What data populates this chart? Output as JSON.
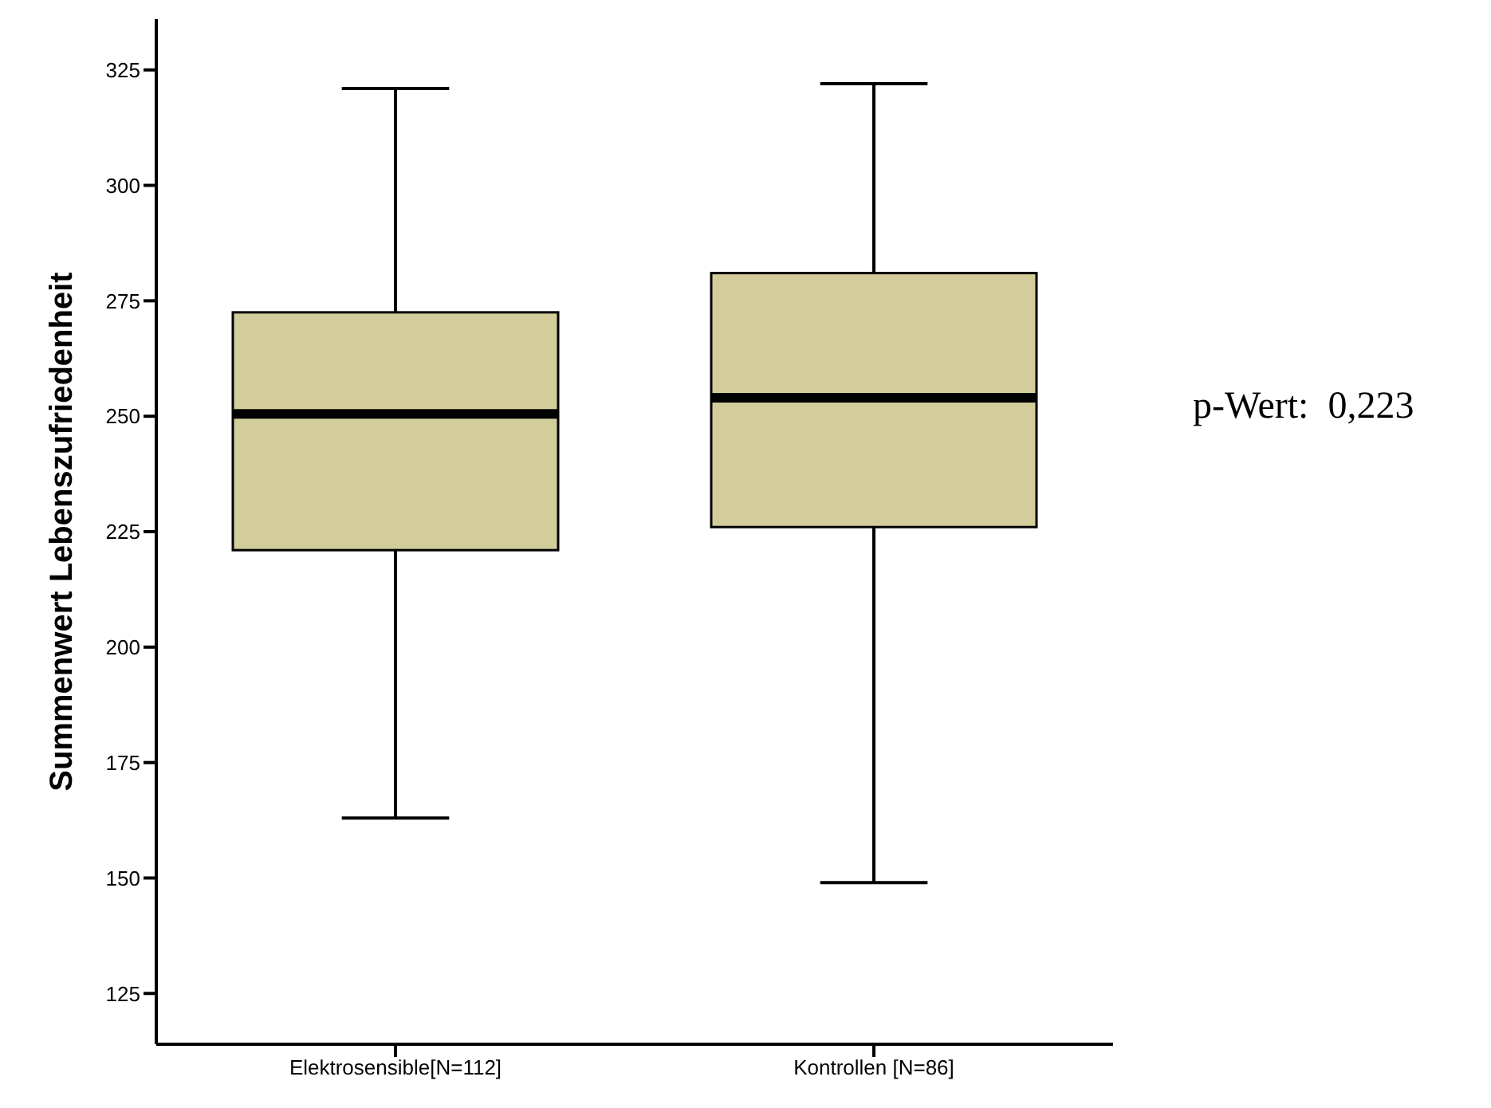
{
  "chart_data": {
    "type": "box",
    "ylabel": "Summenwert Lebenszufriedenheit",
    "categories": [
      "Elektrosensible[N=112]",
      "Kontrollen [N=86]"
    ],
    "color": "#d3cd9b",
    "boxes": [
      {
        "low": 163,
        "q1": 221,
        "median": 250.5,
        "q3": 272.5,
        "high": 321
      },
      {
        "low": 149,
        "q1": 226,
        "median": 254,
        "q3": 281,
        "high": 322
      }
    ],
    "ylim": [
      114,
      336
    ],
    "yticks": [
      125,
      150,
      175,
      200,
      225,
      250,
      275,
      300,
      325
    ],
    "annotations": [
      "p-Wert:  0,223"
    ]
  }
}
